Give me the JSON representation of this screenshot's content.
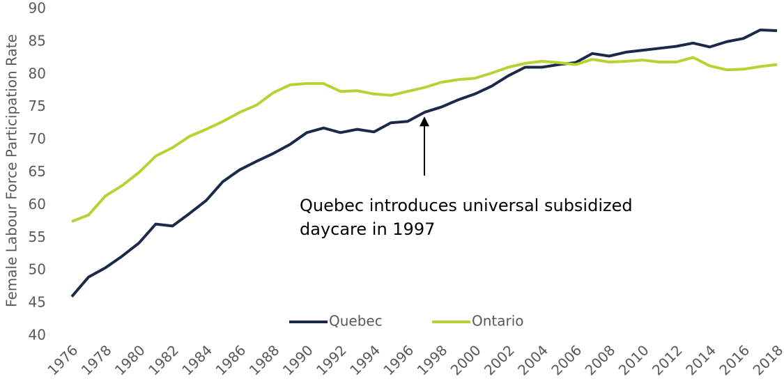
{
  "chart_data": {
    "type": "line",
    "y_label": "Female Labour Force Participation Rate",
    "annotation": [
      "Quebec introduces universal subsidized",
      "daycare in 1997"
    ],
    "x": [
      1976,
      1977,
      1978,
      1979,
      1980,
      1981,
      1982,
      1983,
      1984,
      1985,
      1986,
      1987,
      1988,
      1989,
      1990,
      1991,
      1992,
      1993,
      1994,
      1995,
      1996,
      1997,
      1998,
      1999,
      2000,
      2001,
      2002,
      2003,
      2004,
      2005,
      2006,
      2007,
      2008,
      2009,
      2010,
      2011,
      2012,
      2013,
      2014,
      2015,
      2016,
      2017,
      2018
    ],
    "series": [
      {
        "name": "Quebec",
        "color": "#1c2a48",
        "values": [
          46.0,
          49.0,
          50.4,
          52.2,
          54.2,
          57.1,
          56.8,
          58.7,
          60.7,
          63.6,
          65.4,
          66.7,
          67.9,
          69.3,
          71.1,
          71.8,
          71.1,
          71.6,
          71.2,
          72.6,
          72.8,
          74.2,
          75.0,
          76.1,
          77.0,
          78.2,
          79.8,
          81.1,
          81.1,
          81.5,
          81.8,
          83.2,
          82.8,
          83.4,
          83.7,
          84.0,
          84.3,
          84.8,
          84.2,
          85.0,
          85.5,
          86.8,
          86.7
        ]
      },
      {
        "name": "Ontario",
        "color": "#b5d334",
        "values": [
          57.5,
          58.5,
          61.4,
          63.0,
          65.0,
          67.5,
          68.8,
          70.5,
          71.6,
          72.8,
          74.2,
          75.3,
          77.2,
          78.4,
          78.6,
          78.6,
          77.4,
          77.5,
          77.0,
          76.8,
          77.4,
          78.0,
          78.8,
          79.2,
          79.4,
          80.2,
          81.1,
          81.7,
          82.0,
          81.8,
          81.5,
          82.3,
          81.9,
          82.0,
          82.2,
          81.9,
          81.9,
          82.6,
          81.3,
          80.7,
          80.8,
          81.2,
          81.5
        ]
      }
    ],
    "xlim": [
      1976,
      2018
    ],
    "xticks": [
      1976,
      1978,
      1980,
      1982,
      1984,
      1986,
      1988,
      1990,
      1992,
      1994,
      1996,
      1998,
      2000,
      2002,
      2004,
      2006,
      2008,
      2010,
      2012,
      2014,
      2016,
      2018
    ],
    "ylim": [
      40,
      90
    ],
    "yticks": [
      40,
      45,
      50,
      55,
      60,
      65,
      70,
      75,
      80,
      85,
      90
    ],
    "grid": false,
    "legend": "bottom"
  }
}
